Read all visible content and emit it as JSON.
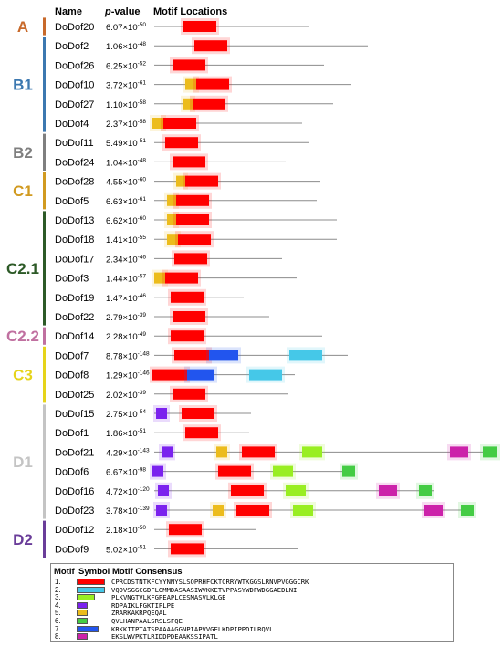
{
  "header": {
    "name": "Name",
    "pvalue_italic": "p",
    "pvalue_rest": "-value",
    "motif_locations": "Motif Locations"
  },
  "groups": [
    {
      "label": "A",
      "color": "#c8692a",
      "first": 0,
      "last": 0
    },
    {
      "label": "B1",
      "color": "#3c78b0",
      "first": 1,
      "last": 5
    },
    {
      "label": "B2",
      "color": "#7f7f7f",
      "first": 6,
      "last": 7
    },
    {
      "label": "C1",
      "color": "#d19a20",
      "first": 8,
      "last": 9
    },
    {
      "label": "C2.1",
      "color": "#2d5a27",
      "first": 10,
      "last": 15
    },
    {
      "label": "C2.2",
      "color": "#c070a0",
      "first": 16,
      "last": 16
    },
    {
      "label": "C3",
      "color": "#e6d41a",
      "first": 17,
      "last": 19
    },
    {
      "label": "D1",
      "color": "#c4c4c4",
      "first": 20,
      "last": 25
    },
    {
      "label": "D2",
      "color": "#6a3d99",
      "first": 26,
      "last": 27
    }
  ],
  "motif_colors": {
    "1": "#ff0000",
    "2": "#45c8e8",
    "3": "#99ee22",
    "4": "#7b22ee",
    "5": "#ecbc1c",
    "6": "#44cc44",
    "7": "#2255ee",
    "8": "#cc22aa"
  },
  "genes": [
    {
      "name": "DoDof20",
      "p_mant": "6.07",
      "p_exp": "-50",
      "len": 0.85,
      "motifs": [
        {
          "id": 1,
          "s": 0.16,
          "e": 0.34
        }
      ]
    },
    {
      "name": "DoDof2",
      "p_mant": "1.06",
      "p_exp": "-48",
      "len": 1.17,
      "motifs": [
        {
          "id": 1,
          "s": 0.22,
          "e": 0.4
        }
      ]
    },
    {
      "name": "DoDof26",
      "p_mant": "6.25",
      "p_exp": "-52",
      "len": 0.93,
      "motifs": [
        {
          "id": 1,
          "s": 0.1,
          "e": 0.28
        }
      ]
    },
    {
      "name": "DoDof10",
      "p_mant": "3.72",
      "p_exp": "-61",
      "len": 1.08,
      "motifs": [
        {
          "id": 5,
          "s": 0.17,
          "e": 0.23
        },
        {
          "id": 1,
          "s": 0.23,
          "e": 0.41
        }
      ]
    },
    {
      "name": "DoDof27",
      "p_mant": "1.10",
      "p_exp": "-58",
      "len": 0.98,
      "motifs": [
        {
          "id": 5,
          "s": 0.16,
          "e": 0.21
        },
        {
          "id": 1,
          "s": 0.21,
          "e": 0.39
        }
      ]
    },
    {
      "name": "DoDof4",
      "p_mant": "2.37",
      "p_exp": "-58",
      "len": 0.81,
      "motifs": [
        {
          "id": 5,
          "s": -0.01,
          "e": 0.05
        },
        {
          "id": 1,
          "s": 0.05,
          "e": 0.23
        }
      ]
    },
    {
      "name": "DoDof11",
      "p_mant": "5.49",
      "p_exp": "-51",
      "len": 0.85,
      "motifs": [
        {
          "id": 1,
          "s": 0.06,
          "e": 0.24
        }
      ]
    },
    {
      "name": "DoDof24",
      "p_mant": "1.04",
      "p_exp": "-48",
      "len": 0.72,
      "motifs": [
        {
          "id": 1,
          "s": 0.1,
          "e": 0.28
        }
      ]
    },
    {
      "name": "DoDof28",
      "p_mant": "4.55",
      "p_exp": "-60",
      "len": 0.91,
      "motifs": [
        {
          "id": 5,
          "s": 0.12,
          "e": 0.17
        },
        {
          "id": 1,
          "s": 0.17,
          "e": 0.35
        }
      ]
    },
    {
      "name": "DoDof5",
      "p_mant": "6.63",
      "p_exp": "-61",
      "len": 0.89,
      "motifs": [
        {
          "id": 5,
          "s": 0.07,
          "e": 0.12
        },
        {
          "id": 1,
          "s": 0.12,
          "e": 0.3
        }
      ]
    },
    {
      "name": "DoDof13",
      "p_mant": "6.62",
      "p_exp": "-60",
      "len": 1.0,
      "motifs": [
        {
          "id": 5,
          "s": 0.07,
          "e": 0.12
        },
        {
          "id": 1,
          "s": 0.12,
          "e": 0.3
        }
      ]
    },
    {
      "name": "DoDof18",
      "p_mant": "1.41",
      "p_exp": "-55",
      "len": 1.0,
      "motifs": [
        {
          "id": 5,
          "s": 0.07,
          "e": 0.13
        },
        {
          "id": 1,
          "s": 0.13,
          "e": 0.31
        }
      ]
    },
    {
      "name": "DoDof17",
      "p_mant": "2.34",
      "p_exp": "-46",
      "len": 0.7,
      "motifs": [
        {
          "id": 1,
          "s": 0.11,
          "e": 0.29
        }
      ]
    },
    {
      "name": "DoDof3",
      "p_mant": "1.44",
      "p_exp": "-57",
      "len": 0.78,
      "motifs": [
        {
          "id": 5,
          "s": 0.0,
          "e": 0.06
        },
        {
          "id": 1,
          "s": 0.06,
          "e": 0.24
        }
      ]
    },
    {
      "name": "DoDof19",
      "p_mant": "1.47",
      "p_exp": "-46",
      "len": 0.49,
      "motifs": [
        {
          "id": 1,
          "s": 0.09,
          "e": 0.27
        }
      ]
    },
    {
      "name": "DoDof22",
      "p_mant": "2.79",
      "p_exp": "-39",
      "len": 0.63,
      "motifs": [
        {
          "id": 1,
          "s": 0.1,
          "e": 0.28
        }
      ]
    },
    {
      "name": "DoDof14",
      "p_mant": "2.28",
      "p_exp": "-49",
      "len": 0.92,
      "motifs": [
        {
          "id": 1,
          "s": 0.09,
          "e": 0.27
        }
      ]
    },
    {
      "name": "DoDof7",
      "p_mant": "8.78",
      "p_exp": "-148",
      "len": 1.06,
      "motifs": [
        {
          "id": 1,
          "s": 0.11,
          "e": 0.3
        },
        {
          "id": 7,
          "s": 0.3,
          "e": 0.46
        },
        {
          "id": 2,
          "s": 0.74,
          "e": 0.92
        }
      ]
    },
    {
      "name": "DoDof8",
      "p_mant": "1.29",
      "p_exp": "-146",
      "len": 0.77,
      "motifs": [
        {
          "id": 1,
          "s": -0.01,
          "e": 0.18
        },
        {
          "id": 7,
          "s": 0.18,
          "e": 0.33
        },
        {
          "id": 2,
          "s": 0.52,
          "e": 0.7
        }
      ]
    },
    {
      "name": "DoDof25",
      "p_mant": "2.02",
      "p_exp": "-39",
      "len": 0.73,
      "motifs": [
        {
          "id": 1,
          "s": 0.1,
          "e": 0.28
        }
      ]
    },
    {
      "name": "DoDof15",
      "p_mant": "2.75",
      "p_exp": "-54",
      "len": 0.53,
      "motifs": [
        {
          "id": 4,
          "s": 0.01,
          "e": 0.07
        },
        {
          "id": 1,
          "s": 0.15,
          "e": 0.33
        }
      ]
    },
    {
      "name": "DoDof1",
      "p_mant": "1.86",
      "p_exp": "-51",
      "len": 0.52,
      "motifs": [
        {
          "id": 1,
          "s": 0.17,
          "e": 0.35
        }
      ]
    },
    {
      "name": "DoDof21",
      "p_mant": "4.29",
      "p_exp": "-143",
      "len": 1.87,
      "motifs": [
        {
          "id": 4,
          "s": 0.04,
          "e": 0.1
        },
        {
          "id": 5,
          "s": 0.34,
          "e": 0.4
        },
        {
          "id": 1,
          "s": 0.48,
          "e": 0.66
        },
        {
          "id": 3,
          "s": 0.81,
          "e": 0.92
        },
        {
          "id": 8,
          "s": 1.62,
          "e": 1.72
        },
        {
          "id": 6,
          "s": 1.8,
          "e": 1.88
        }
      ]
    },
    {
      "name": "DoDof6",
      "p_mant": "6.67",
      "p_exp": "-98",
      "len": 1.03,
      "motifs": [
        {
          "id": 4,
          "s": -0.01,
          "e": 0.05
        },
        {
          "id": 1,
          "s": 0.35,
          "e": 0.53
        },
        {
          "id": 3,
          "s": 0.65,
          "e": 0.76
        },
        {
          "id": 6,
          "s": 1.03,
          "e": 1.1
        }
      ]
    },
    {
      "name": "DoDof16",
      "p_mant": "4.72",
      "p_exp": "-120",
      "len": 1.53,
      "motifs": [
        {
          "id": 4,
          "s": 0.02,
          "e": 0.08
        },
        {
          "id": 1,
          "s": 0.42,
          "e": 0.6
        },
        {
          "id": 3,
          "s": 0.72,
          "e": 0.83
        },
        {
          "id": 8,
          "s": 1.23,
          "e": 1.33
        },
        {
          "id": 6,
          "s": 1.45,
          "e": 1.52
        }
      ]
    },
    {
      "name": "DoDof23",
      "p_mant": "3.78",
      "p_exp": "-139",
      "len": 1.75,
      "motifs": [
        {
          "id": 4,
          "s": 0.01,
          "e": 0.07
        },
        {
          "id": 5,
          "s": 0.32,
          "e": 0.38
        },
        {
          "id": 1,
          "s": 0.45,
          "e": 0.63
        },
        {
          "id": 3,
          "s": 0.76,
          "e": 0.87
        },
        {
          "id": 8,
          "s": 1.48,
          "e": 1.58
        },
        {
          "id": 6,
          "s": 1.68,
          "e": 1.75
        }
      ]
    },
    {
      "name": "DoDof12",
      "p_mant": "2.18",
      "p_exp": "-50",
      "len": 0.56,
      "motifs": [
        {
          "id": 1,
          "s": 0.08,
          "e": 0.26
        }
      ]
    },
    {
      "name": "DoDof9",
      "p_mant": "5.02",
      "p_exp": "-51",
      "len": 0.79,
      "motifs": [
        {
          "id": 1,
          "s": 0.09,
          "e": 0.27
        }
      ]
    }
  ],
  "legend": {
    "headers": {
      "motif": "Motif",
      "symbol": "Symbol",
      "consensus": "Motif Consensus"
    },
    "rows": [
      {
        "num": "1.",
        "id": 1,
        "consensus": "CPRCDSTNTKFCYYNNYSLSQPRHFCKTCRRYWTKGGSLRNVPVGGGCRK"
      },
      {
        "num": "2.",
        "id": 2,
        "consensus": "VQDVSGGCGDFLGMMDASAASIWVKKETVPPASYWDFWDGGAEDLNI"
      },
      {
        "num": "3.",
        "id": 3,
        "consensus": "PLKVNGTVLKFGPEAPLCESMASVLKLGE"
      },
      {
        "num": "4.",
        "id": 4,
        "consensus": "RDPAIKLFGKTIPLPE"
      },
      {
        "num": "5.",
        "id": 5,
        "consensus": "ZRARKAKRPQEQAL"
      },
      {
        "num": "6.",
        "id": 6,
        "consensus": "QVLHANPAALSRSLSFQE"
      },
      {
        "num": "7.",
        "id": 7,
        "consensus": "KRKKITPTATSPAAAAGGNPIAPVVGELKDPIPPDILRQVL"
      },
      {
        "num": "8.",
        "id": 8,
        "consensus": "EKSLWVPKTLRIDDPDEAAKSSIPATL"
      }
    ]
  }
}
